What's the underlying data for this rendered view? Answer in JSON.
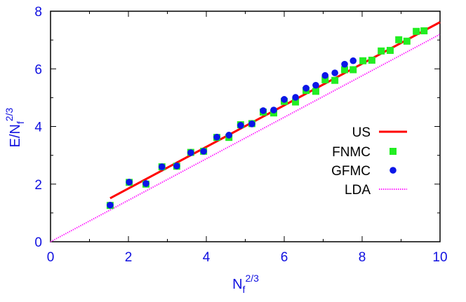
{
  "chart_data": {
    "type": "scatter",
    "title": "",
    "xlabel": "N_f^{2/3}",
    "ylabel": "E/N_f^{2/3}",
    "xlim": [
      0,
      10
    ],
    "ylim": [
      0,
      8
    ],
    "xticks": [
      "0",
      "2",
      "4",
      "6",
      "8",
      "10"
    ],
    "yticks": [
      "0",
      "2",
      "4",
      "6",
      "8"
    ],
    "grid": false,
    "legend_position": "center-right",
    "series": [
      {
        "name": "US",
        "kind": "line",
        "color": "#ff0000",
        "x": [
          1.53,
          10
        ],
        "y": [
          1.51,
          7.62
        ]
      },
      {
        "name": "FNMC",
        "kind": "square",
        "color": "#22ee22",
        "x": [
          1.53,
          2.02,
          2.45,
          2.86,
          3.24,
          3.6,
          3.93,
          4.27,
          4.58,
          4.88,
          5.17,
          5.46,
          5.73,
          6.0,
          6.29,
          6.56,
          6.81,
          7.05,
          7.3,
          7.55,
          7.77,
          8.02,
          8.25,
          8.49,
          8.72,
          8.94,
          9.15,
          9.39,
          9.59
        ],
        "y": [
          1.26,
          2.06,
          2.0,
          2.6,
          2.62,
          3.1,
          3.14,
          3.62,
          3.62,
          4.06,
          4.1,
          4.5,
          4.47,
          4.87,
          4.85,
          5.25,
          5.22,
          5.62,
          5.6,
          5.97,
          5.97,
          6.28,
          6.3,
          6.62,
          6.64,
          7.01,
          6.96,
          7.3,
          7.32
        ]
      },
      {
        "name": "GFMC",
        "kind": "circle",
        "color": "#0b16e8",
        "x": [
          1.53,
          2.02,
          2.45,
          2.86,
          3.24,
          3.6,
          3.93,
          4.27,
          4.58,
          4.88,
          5.17,
          5.46,
          5.73,
          6.0,
          6.29,
          6.56,
          6.81,
          7.05,
          7.3,
          7.55,
          7.77
        ],
        "y": [
          1.27,
          2.07,
          2.02,
          2.6,
          2.63,
          3.09,
          3.14,
          3.63,
          3.7,
          4.04,
          4.09,
          4.55,
          4.57,
          4.94,
          5.01,
          5.33,
          5.43,
          5.77,
          5.86,
          6.16,
          6.28
        ]
      },
      {
        "name": "LDA",
        "kind": "dotted",
        "color": "#ff22ff",
        "x": [
          0,
          10
        ],
        "y": [
          0,
          7.2
        ]
      }
    ]
  }
}
